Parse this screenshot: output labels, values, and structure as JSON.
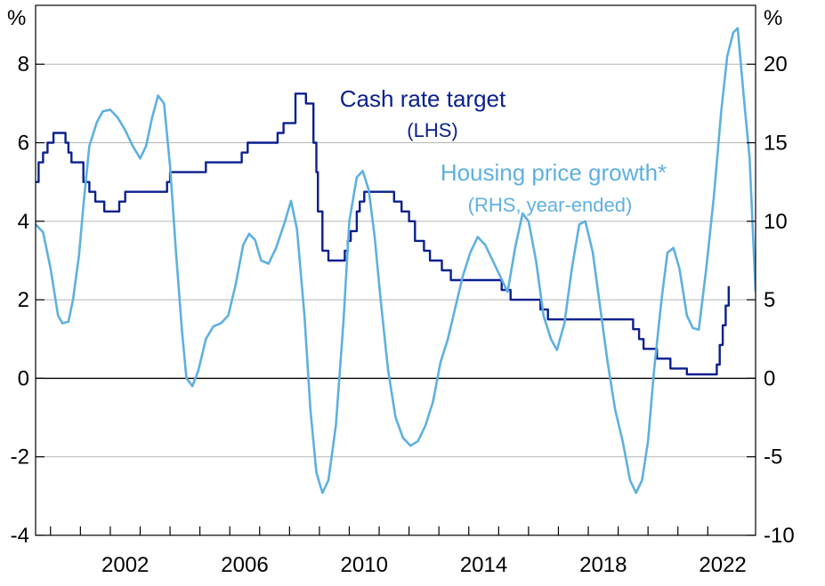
{
  "chart_data": {
    "type": "line",
    "title": "",
    "colors": {
      "cash_rate": "#0a1f8f",
      "housing": "#5eb0e0",
      "grid": "#b5b5b5",
      "zero": "#000000"
    },
    "grid": true,
    "x_axis": {
      "range": [
        1999.5,
        2022.75
      ],
      "tick_labels": [
        "2002",
        "2006",
        "2010",
        "2014",
        "2018",
        "2022"
      ],
      "tick_values": [
        2002,
        2006,
        2010,
        2014,
        2018,
        2022
      ],
      "minor_ticks": [
        2000,
        2001,
        2002,
        2003,
        2004,
        2005,
        2006,
        2007,
        2008,
        2009,
        2010,
        2011,
        2012,
        2013,
        2014,
        2015,
        2016,
        2017,
        2018,
        2019,
        2020,
        2021,
        2022
      ]
    },
    "y_left": {
      "unit": "%",
      "range": [
        -4,
        9.5
      ],
      "ticks": [
        -4,
        -2,
        0,
        2,
        4,
        6,
        8
      ],
      "tick_labels": [
        "-4",
        "-2",
        "0",
        "2",
        "4",
        "6",
        "8"
      ]
    },
    "y_right": {
      "unit": "%",
      "range": [
        -10,
        23.75
      ],
      "ticks": [
        -10,
        -5,
        0,
        5,
        10,
        15,
        20
      ],
      "tick_labels": [
        "-10",
        "-5",
        "0",
        "5",
        "10",
        "15",
        "20"
      ]
    },
    "annotations": {
      "cash_rate_name": "Cash rate target",
      "cash_rate_sub": "(LHS)",
      "housing_name": "Housing price growth*",
      "housing_sub": "(RHS, year-ended)"
    },
    "series": [
      {
        "name": "Cash rate target",
        "axis": "left",
        "step": true,
        "points": [
          [
            1999.5,
            5.0
          ],
          [
            1999.6,
            5.5
          ],
          [
            1999.75,
            5.75
          ],
          [
            1999.9,
            6.0
          ],
          [
            2000.1,
            6.25
          ],
          [
            2000.5,
            6.0
          ],
          [
            2000.6,
            5.75
          ],
          [
            2000.7,
            5.5
          ],
          [
            2001.1,
            5.0
          ],
          [
            2001.3,
            4.75
          ],
          [
            2001.5,
            4.5
          ],
          [
            2001.8,
            4.25
          ],
          [
            2002.3,
            4.5
          ],
          [
            2002.5,
            4.75
          ],
          [
            2003.9,
            5.0
          ],
          [
            2004.0,
            5.25
          ],
          [
            2005.2,
            5.5
          ],
          [
            2006.4,
            5.75
          ],
          [
            2006.6,
            6.0
          ],
          [
            2007.6,
            6.25
          ],
          [
            2007.8,
            6.5
          ],
          [
            2008.2,
            7.25
          ],
          [
            2008.55,
            7.0
          ],
          [
            2008.8,
            6.0
          ],
          [
            2008.9,
            5.25
          ],
          [
            2008.95,
            4.25
          ],
          [
            2009.1,
            3.25
          ],
          [
            2009.3,
            3.0
          ],
          [
            2009.85,
            3.25
          ],
          [
            2009.95,
            3.5
          ],
          [
            2010.05,
            3.75
          ],
          [
            2010.25,
            4.25
          ],
          [
            2010.35,
            4.5
          ],
          [
            2010.5,
            4.75
          ],
          [
            2011.5,
            4.5
          ],
          [
            2011.75,
            4.25
          ],
          [
            2012.0,
            4.0
          ],
          [
            2012.2,
            3.5
          ],
          [
            2012.5,
            3.25
          ],
          [
            2012.7,
            3.0
          ],
          [
            2013.1,
            2.75
          ],
          [
            2013.4,
            2.5
          ],
          [
            2015.1,
            2.25
          ],
          [
            2015.4,
            2.0
          ],
          [
            2016.4,
            1.75
          ],
          [
            2016.65,
            1.5
          ],
          [
            2019.5,
            1.25
          ],
          [
            2019.7,
            1.0
          ],
          [
            2019.85,
            0.75
          ],
          [
            2020.3,
            0.5
          ],
          [
            2020.75,
            0.25
          ],
          [
            2021.3,
            0.1
          ],
          [
            2022.3,
            0.35
          ],
          [
            2022.4,
            0.85
          ],
          [
            2022.5,
            1.35
          ],
          [
            2022.6,
            1.85
          ],
          [
            2022.7,
            2.35
          ]
        ]
      },
      {
        "name": "Housing price growth*",
        "axis": "right",
        "step": false,
        "points": [
          [
            1999.5,
            9.8
          ],
          [
            1999.75,
            9.3
          ],
          [
            2000.0,
            7.0
          ],
          [
            2000.25,
            4.0
          ],
          [
            2000.4,
            3.5
          ],
          [
            2000.6,
            3.6
          ],
          [
            2000.75,
            5.0
          ],
          [
            2000.95,
            7.8
          ],
          [
            2001.1,
            11.0
          ],
          [
            2001.3,
            14.8
          ],
          [
            2001.55,
            16.3
          ],
          [
            2001.75,
            17.0
          ],
          [
            2002.0,
            17.1
          ],
          [
            2002.25,
            16.6
          ],
          [
            2002.5,
            15.8
          ],
          [
            2002.75,
            14.8
          ],
          [
            2003.0,
            14.0
          ],
          [
            2003.2,
            14.8
          ],
          [
            2003.4,
            16.6
          ],
          [
            2003.6,
            18.0
          ],
          [
            2003.8,
            17.5
          ],
          [
            2004.0,
            13.5
          ],
          [
            2004.2,
            8.0
          ],
          [
            2004.4,
            3.0
          ],
          [
            2004.55,
            0.0
          ],
          [
            2004.75,
            -0.5
          ],
          [
            2004.95,
            0.5
          ],
          [
            2005.2,
            2.5
          ],
          [
            2005.45,
            3.3
          ],
          [
            2005.7,
            3.5
          ],
          [
            2005.95,
            4.0
          ],
          [
            2006.2,
            6.0
          ],
          [
            2006.45,
            8.5
          ],
          [
            2006.65,
            9.2
          ],
          [
            2006.85,
            8.8
          ],
          [
            2007.05,
            7.5
          ],
          [
            2007.3,
            7.3
          ],
          [
            2007.55,
            8.3
          ],
          [
            2007.85,
            10.0
          ],
          [
            2008.05,
            11.3
          ],
          [
            2008.25,
            9.5
          ],
          [
            2008.5,
            4.0
          ],
          [
            2008.7,
            -2.0
          ],
          [
            2008.9,
            -6.0
          ],
          [
            2009.1,
            -7.3
          ],
          [
            2009.3,
            -6.5
          ],
          [
            2009.55,
            -3.0
          ],
          [
            2009.8,
            3.5
          ],
          [
            2010.0,
            10.0
          ],
          [
            2010.25,
            12.8
          ],
          [
            2010.45,
            13.2
          ],
          [
            2010.65,
            12.0
          ],
          [
            2010.85,
            9.0
          ],
          [
            2011.05,
            5.0
          ],
          [
            2011.3,
            0.5
          ],
          [
            2011.55,
            -2.5
          ],
          [
            2011.8,
            -3.8
          ],
          [
            2012.05,
            -4.3
          ],
          [
            2012.3,
            -4.0
          ],
          [
            2012.55,
            -3.0
          ],
          [
            2012.8,
            -1.5
          ],
          [
            2013.05,
            1.0
          ],
          [
            2013.3,
            2.5
          ],
          [
            2013.55,
            4.5
          ],
          [
            2013.8,
            6.5
          ],
          [
            2014.05,
            8.0
          ],
          [
            2014.3,
            9.0
          ],
          [
            2014.55,
            8.5
          ],
          [
            2014.8,
            7.5
          ],
          [
            2015.05,
            6.5
          ],
          [
            2015.3,
            5.5
          ],
          [
            2015.55,
            8.3
          ],
          [
            2015.8,
            10.5
          ],
          [
            2016.0,
            10.0
          ],
          [
            2016.25,
            7.5
          ],
          [
            2016.5,
            4.0
          ],
          [
            2016.75,
            2.5
          ],
          [
            2016.95,
            1.8
          ],
          [
            2017.2,
            3.5
          ],
          [
            2017.45,
            7.0
          ],
          [
            2017.7,
            9.8
          ],
          [
            2017.9,
            10.0
          ],
          [
            2018.15,
            8.0
          ],
          [
            2018.4,
            4.5
          ],
          [
            2018.65,
            1.0
          ],
          [
            2018.9,
            -2.0
          ],
          [
            2019.15,
            -4.0
          ],
          [
            2019.4,
            -6.5
          ],
          [
            2019.6,
            -7.3
          ],
          [
            2019.8,
            -6.5
          ],
          [
            2020.0,
            -4.0
          ],
          [
            2020.2,
            0.5
          ],
          [
            2020.45,
            5.0
          ],
          [
            2020.65,
            8.0
          ],
          [
            2020.85,
            8.3
          ],
          [
            2021.05,
            7.0
          ],
          [
            2021.3,
            4.0
          ],
          [
            2021.5,
            3.2
          ],
          [
            2021.7,
            3.1
          ],
          [
            2021.95,
            7.0
          ],
          [
            2022.2,
            11.5
          ],
          [
            2022.45,
            17.0
          ],
          [
            2022.65,
            20.5
          ],
          [
            2022.85,
            22.0
          ],
          [
            2023.0,
            22.3
          ],
          [
            2023.2,
            18.0
          ],
          [
            2023.4,
            14.0
          ],
          [
            2023.6,
            5.5
          ]
        ]
      }
    ]
  }
}
